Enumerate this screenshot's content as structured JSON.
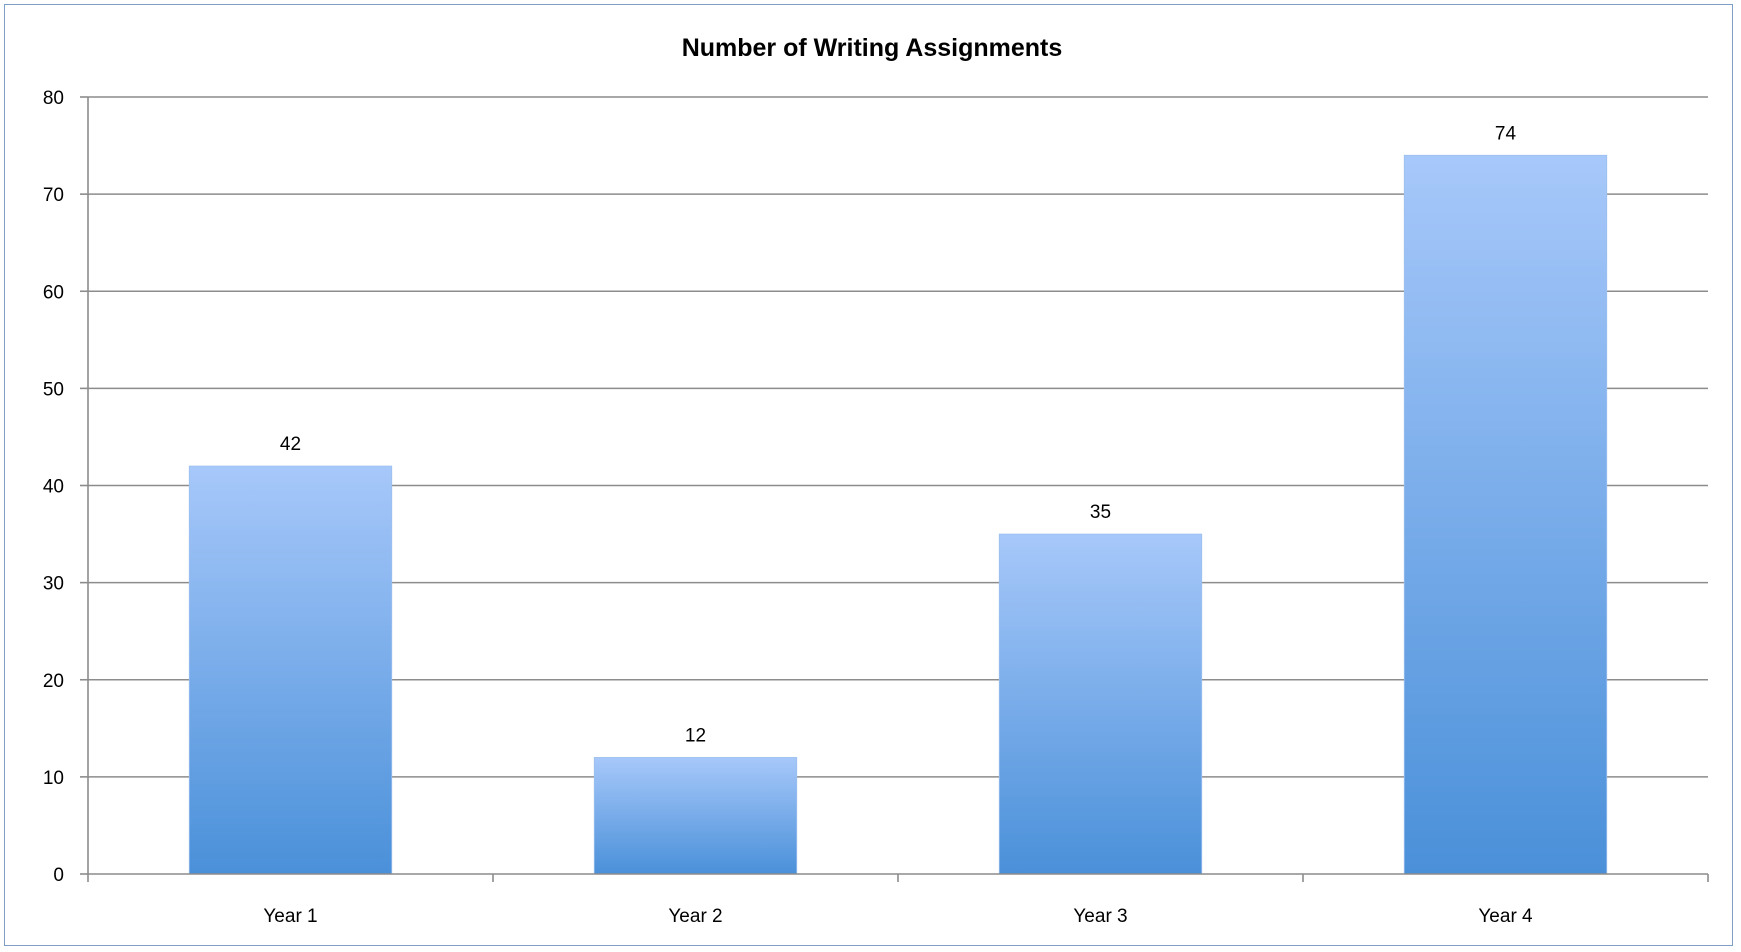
{
  "chart_data": {
    "type": "bar",
    "title": "Number of Writing Assignments",
    "categories": [
      "Year 1",
      "Year 2",
      "Year 3",
      "Year 4"
    ],
    "values": [
      42,
      12,
      35,
      74
    ],
    "data_labels": [
      "42",
      "12",
      "35",
      "74"
    ],
    "ylim": [
      0,
      80
    ],
    "yticks": [
      "0",
      "10",
      "20",
      "30",
      "40",
      "50",
      "60",
      "70",
      "80"
    ],
    "grid": true,
    "legend": "none",
    "colors": {
      "bar_top": "#a7c8fa",
      "bar_bottom": "#4a90d9",
      "grid": "#8c8c8c",
      "frame": "#7f9fc6"
    }
  }
}
